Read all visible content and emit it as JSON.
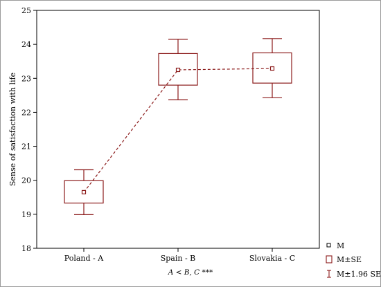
{
  "chart_data": {
    "type": "box",
    "categories": [
      "Poland - A",
      "Spain - B",
      "Slovakia - C"
    ],
    "mean": [
      19.65,
      23.25,
      23.29
    ],
    "se_low": [
      19.33,
      22.8,
      22.86
    ],
    "se_high": [
      19.99,
      23.73,
      23.75
    ],
    "ci_low": [
      18.99,
      22.37,
      22.43
    ],
    "ci_high": [
      20.31,
      24.15,
      24.17
    ],
    "ylabel": "Sense of satisfaction with life",
    "xlabel": "",
    "ylim": [
      18,
      25
    ],
    "yticks": [
      18,
      19,
      20,
      21,
      22,
      23,
      24,
      25
    ],
    "legend": [
      {
        "symbol": "mean",
        "label": "M"
      },
      {
        "symbol": "box",
        "label": "M±SE"
      },
      {
        "symbol": "whisker",
        "label": "M±1.96 SE"
      }
    ],
    "legend_position": "bottom-right",
    "note": "A < B, C ***",
    "colors": {
      "series": "#8b1a1a",
      "axis": "#000000",
      "frame": "#9a9a9a"
    }
  }
}
